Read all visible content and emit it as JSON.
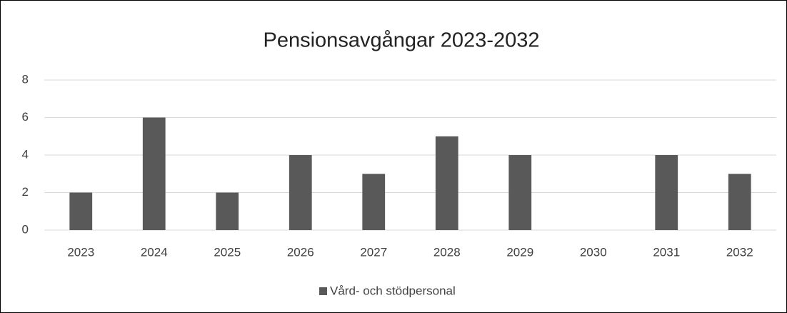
{
  "chart_data": {
    "type": "bar",
    "title": "Pensionsavgångar 2023-2032",
    "categories": [
      "2023",
      "2024",
      "2025",
      "2026",
      "2027",
      "2028",
      "2029",
      "2030",
      "2031",
      "2032"
    ],
    "series": [
      {
        "name": "Vård- och stödpersonal",
        "color": "#595959",
        "values": [
          2,
          6,
          2,
          4,
          3,
          5,
          4,
          0,
          4,
          3
        ]
      }
    ],
    "ylim": [
      0,
      8
    ],
    "yticks": [
      0,
      2,
      4,
      6,
      8
    ],
    "grid": true,
    "legend": "bottom"
  }
}
